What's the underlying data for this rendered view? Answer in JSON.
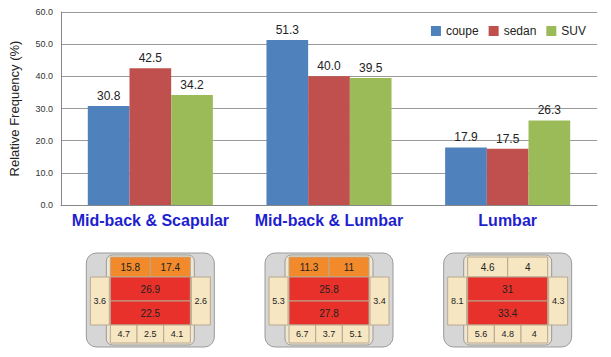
{
  "chart_data": {
    "type": "bar",
    "y_label": "Relative Frequency (%)",
    "categories": [
      "Mid-back & Scapular",
      "Mid-back & Lumbar",
      "Lumbar"
    ],
    "series": [
      {
        "name": "coupe",
        "color": "#4f81bd",
        "values": [
          30.8,
          51.3,
          17.9
        ],
        "value_labels": [
          "30.8",
          "51.3",
          "17.9"
        ]
      },
      {
        "name": "sedan",
        "color": "#c0504d",
        "values": [
          42.5,
          40.0,
          17.5
        ],
        "value_labels": [
          "42.5",
          "40.0",
          "17.5"
        ]
      },
      {
        "name": "SUV",
        "color": "#9bbb59",
        "values": [
          34.2,
          39.5,
          26.3
        ],
        "value_labels": [
          "34.2",
          "39.5",
          "26.3"
        ]
      }
    ],
    "ylim": [
      0,
      60
    ],
    "yticks": [
      {
        "value": 0,
        "label": "0.0"
      },
      {
        "value": 10,
        "label": "10.0"
      },
      {
        "value": 20,
        "label": "20.0"
      },
      {
        "value": 30,
        "label": "30.0"
      },
      {
        "value": 40,
        "label": "40.0"
      },
      {
        "value": 50,
        "label": "50.0"
      },
      {
        "value": 60,
        "label": "60.0"
      }
    ],
    "grid": true,
    "legend": "top-right",
    "data_labels": true,
    "seat_maps": [
      {
        "top": [
          15.8,
          17.4
        ],
        "upper": 26.9,
        "lower": 22.5,
        "sides": [
          3.6,
          2.6
        ],
        "bottom": [
          4.7,
          2.5,
          4.1
        ]
      },
      {
        "top": [
          11.3,
          11.0
        ],
        "upper": 25.8,
        "lower": 27.8,
        "sides": [
          5.3,
          3.4
        ],
        "bottom": [
          6.7,
          3.7,
          5.1
        ]
      },
      {
        "top": [
          4.6,
          4.0
        ],
        "upper": 31.0,
        "lower": 33.4,
        "sides": [
          8.1,
          4.3
        ],
        "bottom": [
          5.6,
          4.8,
          4.0
        ]
      }
    ]
  }
}
